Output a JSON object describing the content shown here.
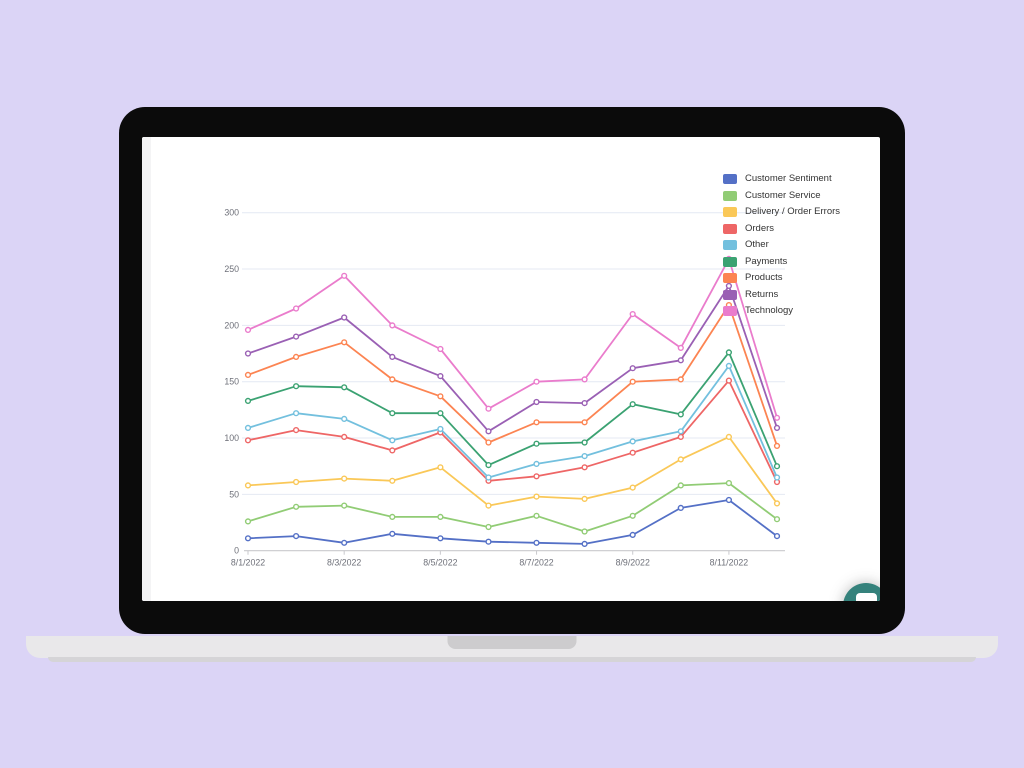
{
  "laptop": {
    "bezel_color": "#0b0b0b",
    "screen_color": "#ffffff",
    "base_color": "#e9e8ea",
    "notch_color": "#cdccce"
  },
  "chat_widget": {
    "color": "#35827c"
  },
  "chart_data": {
    "type": "line",
    "title": "",
    "xlabel": "",
    "ylabel": "",
    "x": [
      "8/1/2022",
      "8/2/2022",
      "8/3/2022",
      "8/4/2022",
      "8/5/2022",
      "8/6/2022",
      "8/7/2022",
      "8/8/2022",
      "8/9/2022",
      "8/10/2022",
      "8/11/2022",
      "8/12/2022"
    ],
    "x_label_interval": 2,
    "x_tick_labels_shown": [
      "8/1/2022",
      "8/3/2022",
      "8/5/2022",
      "8/7/2022",
      "8/9/2022",
      "8/11/2022"
    ],
    "ylim": [
      0,
      300
    ],
    "y_ticks": [
      0,
      50,
      100,
      150,
      200,
      250,
      300
    ],
    "grid": true,
    "grid_color": "#e4e9f3",
    "axis_color": "#c9c9cd",
    "axis_label_color": "#6e7079",
    "legend_position": "top-right",
    "marker": "empty-circle",
    "series": [
      {
        "name": "Customer Sentiment",
        "color": "#5470c6",
        "values": [
          11,
          13,
          7,
          15,
          11,
          8,
          7,
          6,
          14,
          38,
          45,
          13
        ]
      },
      {
        "name": "Customer Service",
        "color": "#91cc75",
        "values": [
          26,
          39,
          40,
          30,
          30,
          21,
          31,
          17,
          31,
          58,
          60,
          28
        ]
      },
      {
        "name": "Delivery / Order Errors",
        "color": "#fac858",
        "values": [
          58,
          61,
          64,
          62,
          74,
          40,
          48,
          46,
          56,
          81,
          101,
          42
        ]
      },
      {
        "name": "Orders",
        "color": "#ee6666",
        "values": [
          98,
          107,
          101,
          89,
          105,
          62,
          66,
          74,
          87,
          101,
          151,
          61
        ]
      },
      {
        "name": "Other",
        "color": "#73c0de",
        "values": [
          109,
          122,
          117,
          98,
          108,
          65,
          77,
          84,
          97,
          106,
          164,
          65
        ]
      },
      {
        "name": "Payments",
        "color": "#3ba272",
        "values": [
          133,
          146,
          145,
          122,
          122,
          76,
          95,
          96,
          130,
          121,
          176,
          75
        ]
      },
      {
        "name": "Products",
        "color": "#fc8452",
        "values": [
          156,
          172,
          185,
          152,
          137,
          96,
          114,
          114,
          150,
          152,
          218,
          93
        ]
      },
      {
        "name": "Returns",
        "color": "#9a60b4",
        "values": [
          175,
          190,
          207,
          172,
          155,
          106,
          132,
          131,
          162,
          169,
          235,
          109
        ]
      },
      {
        "name": "Technology",
        "color": "#ea7ccc",
        "values": [
          196,
          215,
          244,
          200,
          179,
          126,
          150,
          152,
          210,
          180,
          259,
          118
        ]
      }
    ]
  }
}
